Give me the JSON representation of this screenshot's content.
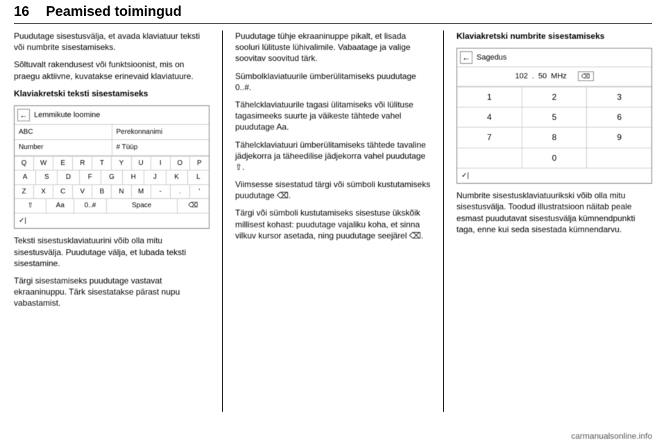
{
  "page_number": "16",
  "chapter_title": "Peamised toimingud",
  "col1": {
    "p1": "Puudutage sisestusvälja, et avada klaviatuur teksti või numbrite sisestamiseks.",
    "p2": "Sõltuvalt rakendusest või funktsioonist, mis on praegu aktiivne, kuvatakse erinevaid klaviatuure.",
    "p3_bold": "Klaviakretski teksti sisestamiseks",
    "p4": "Teksti sisestusklaviatuurini võib olla mitu sisestusvälja. Puudutage välja, et lubada teksti sisestamine.",
    "p5": "Tärgi sisestamiseks puudutage vastavat ekraaninuppu. Tärk sisestatakse pärast nupu vabastamist."
  },
  "keyboard": {
    "title": "Lemmikute loomine",
    "field_abc": "ABC",
    "field_surname": "Perekonnanimi",
    "field_number": "Number",
    "field_type": "# Tüüp",
    "rows": [
      [
        "Q",
        "W",
        "E",
        "R",
        "T",
        "Y",
        "U",
        "I",
        "O",
        "P"
      ],
      [
        "A",
        "S",
        "D",
        "F",
        "G",
        "H",
        "J",
        "K",
        "L"
      ],
      [
        "Z",
        "X",
        "C",
        "V",
        "B",
        "N",
        "M",
        "-",
        ".",
        "'"
      ]
    ],
    "shift": "⇧",
    "aa": "Aa",
    "sym": "0..#",
    "space": "Space",
    "bksp": "⌫",
    "ok1": "✓",
    "ok2": "|"
  },
  "col2": {
    "p1": "Puudutage tühje ekraaninuppe pikalt, et lisada sooluri lülituste lühivalimile. Vabaatage ja valige soovitav soovitud tärk.",
    "p2": "Sümbolklaviatuurile ümberülitamiseks puudutage 0..#.",
    "p3": "Tähelcklaviatuurile tagasi ülitamiseks või lülituse tagasimeeks suurte ja väikeste tähtede vahel puudutage Aa.",
    "p4": "Tähelcklaviatuuri ümberülitamiseks tähtede tavaline jädjekorra ja täheedilise jädjekorra vahel puudutage ⇧.",
    "p5": "Viimsesse sisestatud tärgi või sümboli kustutamiseks puudutage ⌫.",
    "p6": "Tärgi või sümboli kustutamiseks sisestuse ükskõik millisest kohast: puudutage vajaliku koha, et sinna vilkuv kursor asetada, ning puudutage seejärel ⌫."
  },
  "col3": {
    "heading_bold": "Klaviakretski numbrite sisestamiseks",
    "p1": "Numbrite sisestusklaviatuurikski võib olla mitu sisestusvälja. Toodud illustratsioon näitab peale esmast puudutavat sisestusvälja kümnendpunkti taga, enne kui seda sisestada kümnendarvu."
  },
  "keypad": {
    "title": "Sagedus",
    "freq_int": "102",
    "freq_dot": ".",
    "freq_dec": "50",
    "unit": "MHz",
    "bksp": "⌫",
    "rows": [
      [
        "1",
        "2",
        "3"
      ],
      [
        "4",
        "5",
        "6"
      ],
      [
        "7",
        "8",
        "9"
      ],
      [
        "",
        "0",
        ""
      ]
    ],
    "ok1": "✓",
    "ok2": "|"
  },
  "footer": "carmanualsonline.info"
}
